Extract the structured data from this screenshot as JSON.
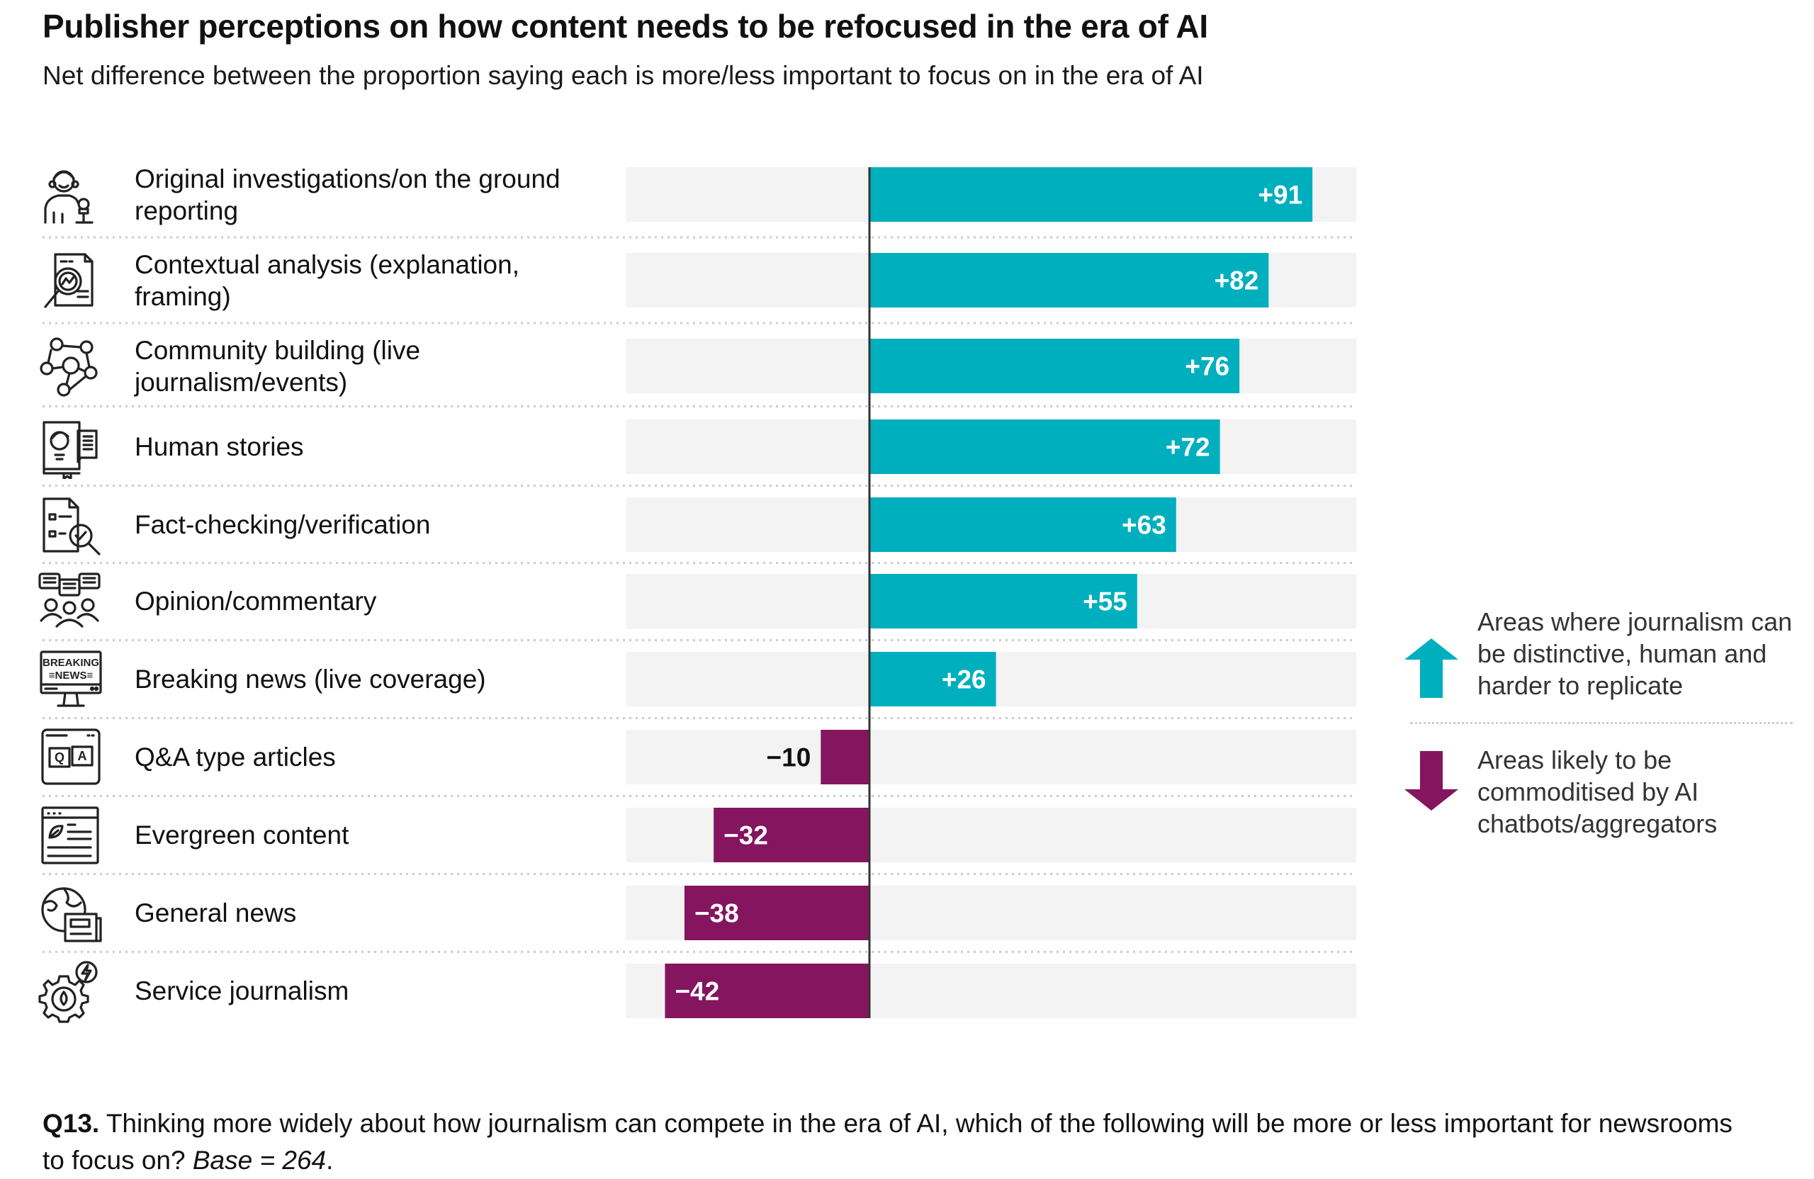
{
  "title": "Publisher perceptions on how content needs to be refocused in the era of AI",
  "subtitle": "Net difference between the proportion saying each is more/less important to focus on in the era of AI",
  "colors": {
    "positive": "#00AFBE",
    "negative": "#84155E",
    "track": "#F3F3F3",
    "axis": "#333333",
    "separator": "#CCCCCC"
  },
  "legend": {
    "positive_text": "Areas where journalism can be distinctive, human and harder to replicate",
    "negative_text": "Areas likely to be commoditised by AI chatbots/aggregators",
    "positive_icon": "arrow-up-icon",
    "negative_icon": "arrow-down-icon"
  },
  "footer": {
    "question_id": "Q13.",
    "question_text": " Thinking more widely about how journalism can compete in the era of AI, which of the following will be more or less important for newsrooms to focus on? ",
    "base": "Base = 264",
    "end": "."
  },
  "chart_data": {
    "type": "bar",
    "orientation": "horizontal",
    "title": "Publisher perceptions on how content needs to be refocused in the era of AI",
    "subtitle": "Net difference between the proportion saying each is more/less important to focus on in the era of AI",
    "xlabel": "",
    "ylabel": "",
    "xlim": [
      -50,
      100
    ],
    "grid": false,
    "legend_position": "right",
    "categories": [
      "Original investigations/on the ground reporting",
      "Contextual analysis (explanation, framing)",
      "Community building (live journalism/events)",
      "Human stories",
      "Fact-checking/verification",
      "Opinion/commentary",
      "Breaking news (live coverage)",
      "Q&A type articles",
      "Evergreen content",
      "General news",
      "Service journalism"
    ],
    "label_lines": [
      [
        "Original investigations/on the ground",
        "reporting"
      ],
      [
        "Contextual analysis (explanation,",
        "framing)"
      ],
      [
        "Community building (live",
        "journalism/events)"
      ],
      [
        "Human stories"
      ],
      [
        "Fact-checking/verification"
      ],
      [
        "Opinion/commentary"
      ],
      [
        "Breaking news (live coverage)"
      ],
      [
        "Q&A type articles"
      ],
      [
        "Evergreen content"
      ],
      [
        "General news"
      ],
      [
        "Service journalism"
      ]
    ],
    "icons": [
      "reporter-microphone-icon",
      "magnifier-document-analysis-icon",
      "community-network-icon",
      "human-story-book-icon",
      "fact-check-document-icon",
      "opinion-speech-bubbles-icon",
      "breaking-news-monitor-icon",
      "qa-browser-icon",
      "evergreen-leaf-page-icon",
      "globe-newspaper-icon",
      "service-gear-icon"
    ],
    "values": [
      91,
      82,
      76,
      72,
      63,
      55,
      26,
      -10,
      -32,
      -38,
      -42
    ],
    "value_labels": [
      "+91",
      "+82",
      "+76",
      "+72",
      "+63",
      "+55",
      "+26",
      "−10",
      "−32",
      "−38",
      "−42"
    ]
  }
}
